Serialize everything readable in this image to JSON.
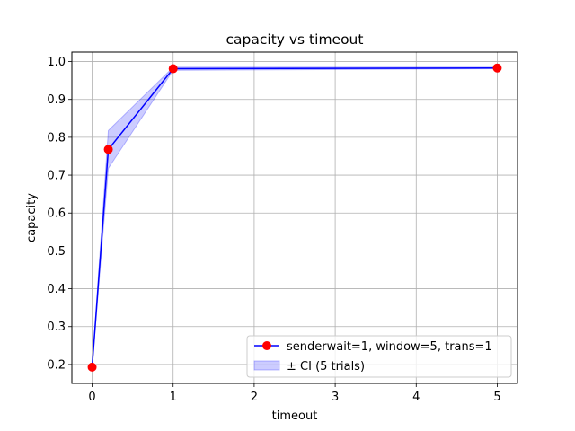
{
  "chart_data": {
    "type": "line",
    "title": "capacity vs timeout",
    "xlabel": "timeout",
    "ylabel": "capacity",
    "xlim": [
      -0.25,
      5.25
    ],
    "ylim": [
      0.15,
      1.025
    ],
    "xticks": [
      0,
      1,
      2,
      3,
      4,
      5
    ],
    "yticks": [
      0.2,
      0.3,
      0.4,
      0.5,
      0.6,
      0.7,
      0.8,
      0.9,
      1.0
    ],
    "ytick_labels": [
      "0.2",
      "0.3",
      "0.4",
      "0.5",
      "0.6",
      "0.7",
      "0.8",
      "0.9",
      "1.0"
    ],
    "grid": true,
    "legend_position": "lower-right",
    "series": [
      {
        "name": "senderwait=1, window=5, trans=1",
        "x": [
          0,
          0.2,
          1,
          5
        ],
        "y": [
          0.193,
          0.768,
          0.981,
          0.983
        ],
        "line_color": "#0000ff",
        "marker_color": "#ff0000",
        "ci_lower": [
          0.193,
          0.718,
          0.977,
          0.981
        ],
        "ci_upper": [
          0.193,
          0.818,
          0.985,
          0.985
        ],
        "ci_label": "± CI (5 trials)",
        "ci_color": "#0000ff"
      }
    ]
  }
}
